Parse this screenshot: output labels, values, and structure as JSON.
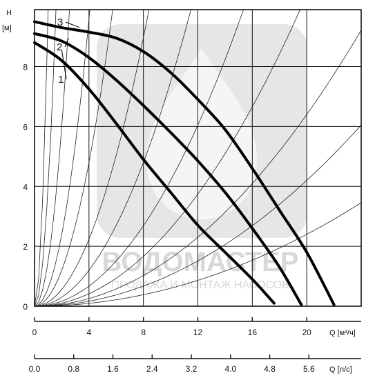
{
  "chart_data": {
    "type": "line",
    "x_axis": {
      "label": "Q [м³/ч]",
      "ticks": [
        0,
        4,
        8,
        12,
        16,
        20
      ],
      "range": [
        0,
        24
      ]
    },
    "x2_axis": {
      "label": "Q [л/с]",
      "ticks": [
        "0.0",
        "0.8",
        "1.6",
        "2.4",
        "3.2",
        "4.0",
        "4.8",
        "5.6"
      ],
      "range": [
        0,
        6.667
      ]
    },
    "y_axis": {
      "label_top": "H",
      "label_unit": "[м]",
      "ticks": [
        0,
        2,
        4,
        6,
        8
      ],
      "range": [
        0,
        9.9
      ]
    },
    "grid": true,
    "series": [
      {
        "name": "1",
        "x": [
          0,
          2,
          4,
          6,
          8,
          10,
          12,
          14,
          16,
          17.6
        ],
        "y": [
          8.8,
          8.2,
          7.25,
          6.1,
          4.9,
          3.8,
          2.7,
          1.8,
          0.9,
          0.1
        ]
      },
      {
        "name": "2",
        "x": [
          0,
          2,
          4,
          6,
          8,
          10,
          12,
          14,
          16,
          18,
          19.6
        ],
        "y": [
          9.1,
          8.85,
          8.3,
          7.55,
          6.7,
          5.8,
          4.85,
          3.8,
          2.6,
          1.3,
          0.05
        ]
      },
      {
        "name": "3",
        "x": [
          0,
          2,
          4,
          6,
          8,
          10,
          12,
          14,
          16,
          18,
          20,
          22
        ],
        "y": [
          9.5,
          9.3,
          9.15,
          8.95,
          8.5,
          7.8,
          6.9,
          5.9,
          4.6,
          3.2,
          1.8,
          0.05
        ]
      }
    ],
    "system_curves": {
      "k": [
        10,
        4,
        1.5,
        0.6,
        0.3,
        0.14,
        0.075,
        0.042,
        0.026,
        0.016,
        0.0105,
        0.006
      ]
    }
  },
  "watermark": {
    "line1": "ВОДОМАСТЕР",
    "line2": "ПРОДАЖА И МОНТАЖ НАСОСОВ"
  }
}
